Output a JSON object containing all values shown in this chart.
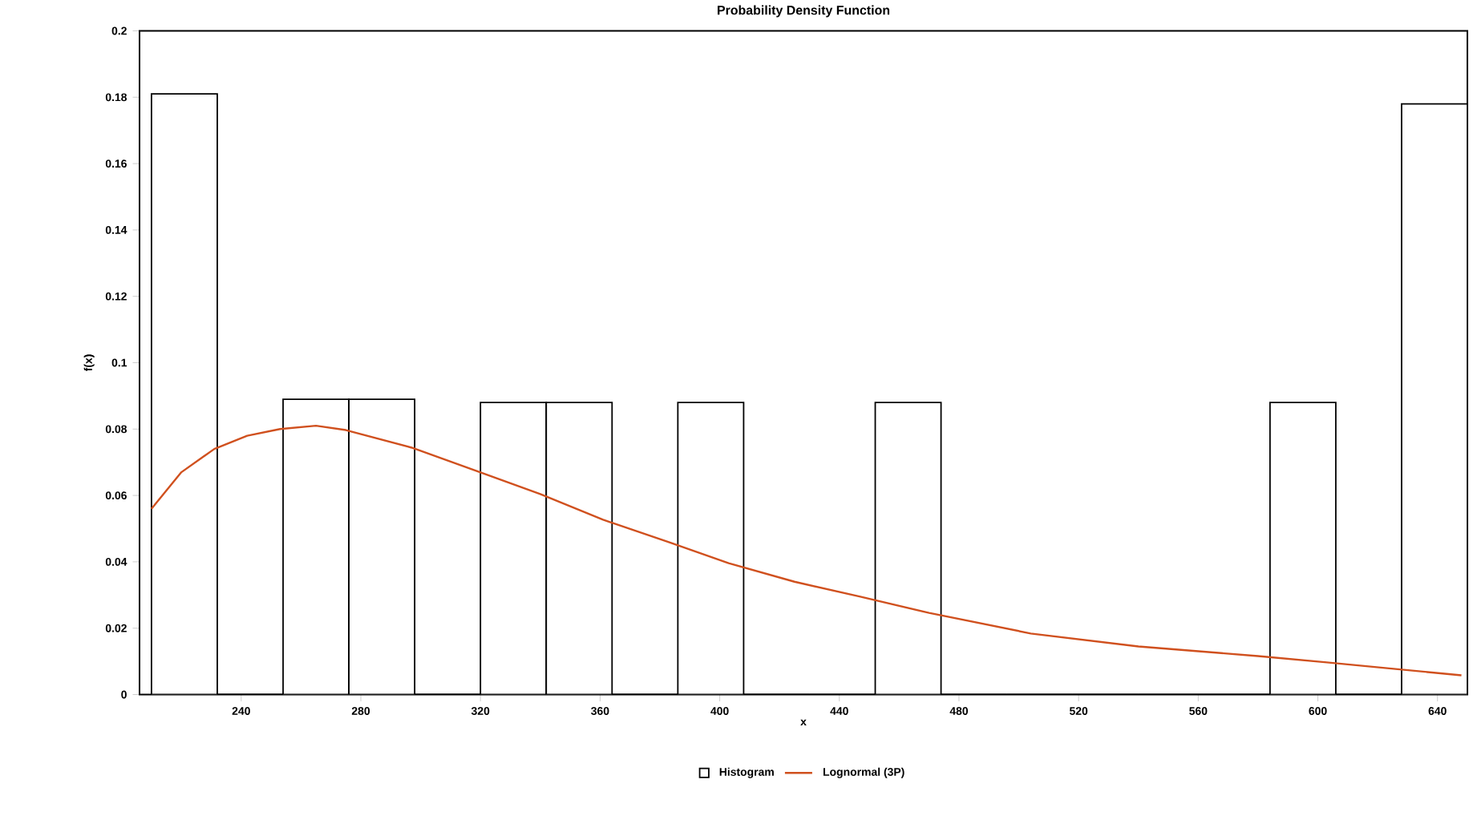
{
  "chart_data": {
    "type": "histogram",
    "title": "Probability Density Function",
    "xlabel": "x",
    "ylabel": "f(x)",
    "xlim": [
      206,
      650
    ],
    "ylim": [
      0,
      0.2
    ],
    "xticks": [
      240,
      280,
      320,
      360,
      400,
      440,
      480,
      520,
      560,
      600,
      640
    ],
    "yticks": [
      0,
      0.02,
      0.04,
      0.06,
      0.08,
      0.1,
      0.12,
      0.14,
      0.16,
      0.18,
      0.2
    ],
    "legend": "bottom",
    "series": [
      {
        "name": "Histogram",
        "color": "#000000",
        "bins": [
          210,
          232,
          254,
          276,
          298,
          320,
          342,
          364,
          386,
          408,
          430,
          452,
          474,
          496,
          518,
          540,
          562,
          584,
          606,
          628,
          650
        ],
        "values": [
          0.181,
          0,
          0.089,
          0.089,
          0,
          0.088,
          0.088,
          0,
          0.088,
          0,
          0,
          0.088,
          0,
          0,
          0,
          0,
          0,
          0.088,
          0,
          0.178
        ]
      },
      {
        "name": "Lognormal (3P)",
        "type": "line",
        "color": "#d0501e",
        "x": [
          210,
          220,
          231,
          242,
          253,
          265,
          275,
          297,
          318,
          340,
          361,
          383,
          403,
          425,
          447,
          470,
          504,
          540,
          580,
          603,
          626,
          648
        ],
        "values": [
          0.056,
          0.067,
          0.074,
          0.078,
          0.08,
          0.081,
          0.0797,
          0.0744,
          0.0676,
          0.0604,
          0.0527,
          0.0459,
          0.0396,
          0.034,
          0.0295,
          0.0246,
          0.0184,
          0.0145,
          0.0116,
          0.0097,
          0.0077,
          0.0058
        ]
      }
    ]
  }
}
